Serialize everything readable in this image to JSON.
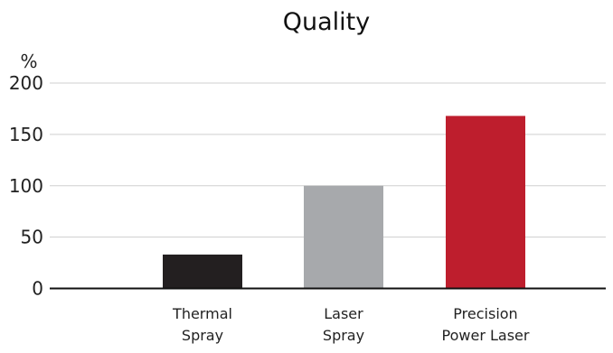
{
  "chart_data": {
    "type": "bar",
    "title": "Quality",
    "ylabel": "%",
    "xlabel": "",
    "ylim": [
      0,
      200
    ],
    "yticks": [
      0,
      50,
      100,
      150,
      200
    ],
    "grid": true,
    "categories": [
      [
        "Thermal",
        "Spray"
      ],
      [
        "Laser",
        "Spray"
      ],
      [
        "Precision",
        "Power Laser"
      ]
    ],
    "values": [
      33,
      100,
      168
    ],
    "colors": [
      "#231f20",
      "#a7a9ac",
      "#be1e2d"
    ]
  }
}
